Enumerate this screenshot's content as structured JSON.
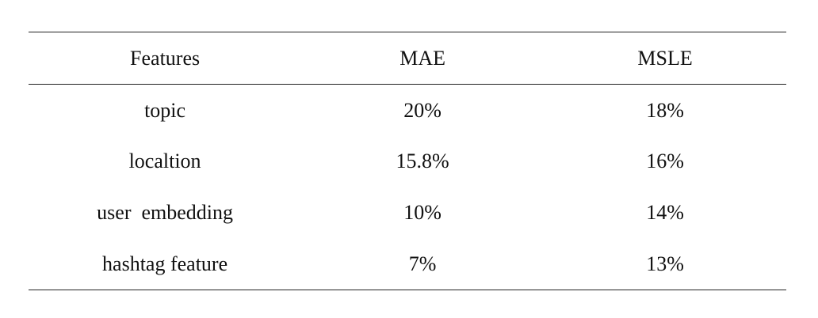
{
  "table": {
    "headers": [
      "Features",
      "MAE",
      "MSLE"
    ],
    "rows": [
      [
        "topic",
        "20%",
        "18%"
      ],
      [
        "localtion",
        "15.8%",
        "16%"
      ],
      [
        "user  embedding",
        "10%",
        "14%"
      ],
      [
        "hashtag feature",
        "7%",
        "13%"
      ]
    ]
  }
}
